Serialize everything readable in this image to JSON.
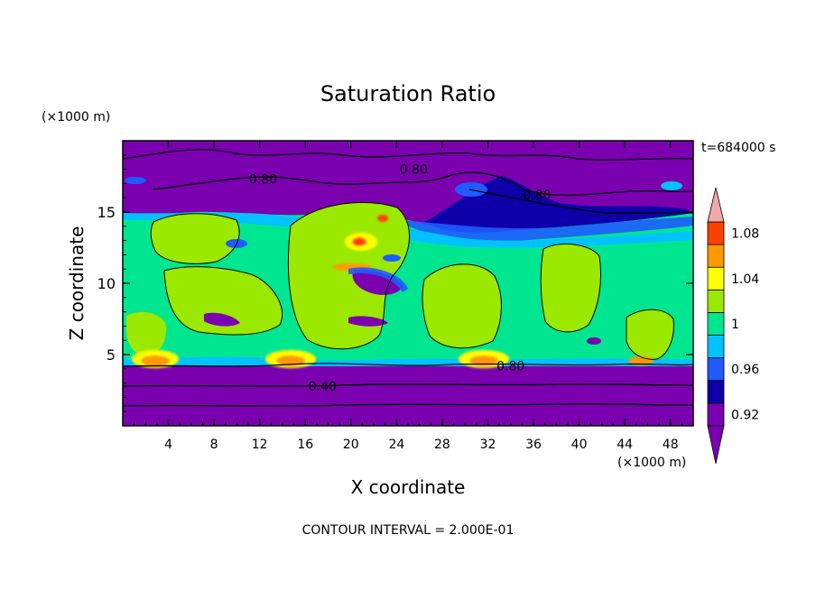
{
  "chart_data": {
    "type": "heatmap",
    "title": "Saturation Ratio",
    "xlabel": "X coordinate",
    "ylabel": "Z coordinate",
    "x_unit": "(×1000 m)",
    "y_unit": "(×1000 m)",
    "time_label": "t=684000 s",
    "footer": "CONTOUR INTERVAL = 2.000E-01",
    "xlim": [
      0,
      50
    ],
    "ylim": [
      0,
      20
    ],
    "x_ticks": [
      4,
      8,
      12,
      16,
      20,
      24,
      28,
      32,
      36,
      40,
      44,
      48
    ],
    "y_ticks": [
      5,
      10,
      15
    ],
    "colorbar": {
      "levels": [
        0.9,
        0.92,
        0.94,
        0.96,
        0.98,
        1.0,
        1.02,
        1.04,
        1.06,
        1.08,
        1.1
      ],
      "tick_labels": [
        "0.92",
        "0.96",
        "1",
        "1.04",
        "1.08"
      ],
      "tick_values": [
        0.92,
        0.96,
        1.0,
        1.04,
        1.08
      ],
      "colors": [
        "#7a00b0",
        "#0d00a8",
        "#1f5bff",
        "#00c2ff",
        "#00e690",
        "#9be800",
        "#ffff00",
        "#ff9900",
        "#ff4000",
        "#f0a8a8"
      ]
    },
    "contour_labels": [
      {
        "text": "0.80",
        "x": 25.5,
        "y": 18.0
      },
      {
        "text": "0.80",
        "x": 12.3,
        "y": 17.3
      },
      {
        "text": "0.80",
        "x": 36.3,
        "y": 16.2
      },
      {
        "text": "0.80",
        "x": 34.0,
        "y": 4.2
      },
      {
        "text": "0.40",
        "x": 17.5,
        "y": 2.8
      }
    ]
  }
}
